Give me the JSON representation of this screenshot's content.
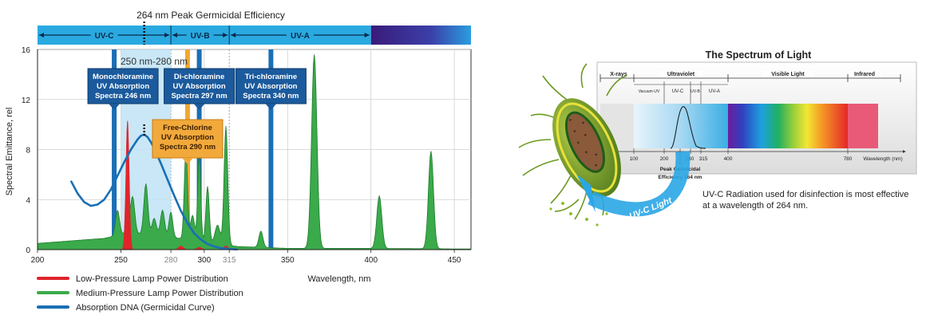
{
  "chart_data": [
    {
      "type": "line",
      "title": "264 nm Peak Germicidal Efficiency",
      "xlabel": "Wavelength, nm",
      "ylabel": "Spectral Emittance, rel",
      "xlim": [
        200,
        460
      ],
      "ylim": [
        0,
        16
      ],
      "x_ticks": [
        200,
        250,
        280,
        300,
        315,
        350,
        400,
        450
      ],
      "y_ticks": [
        0,
        4,
        8,
        12,
        16
      ],
      "grid": true,
      "legend_position": "bottom-left",
      "bands": [
        {
          "label": "UV-C",
          "from": 200,
          "to": 280
        },
        {
          "label": "UV-B",
          "from": 280,
          "to": 315
        },
        {
          "label": "UV-A",
          "from": 315,
          "to": 400
        }
      ],
      "highlight_range": {
        "label": "250 nm-280 nm",
        "from": 250,
        "to": 280
      },
      "peak_marker": {
        "x": 264,
        "label": "264 nm Peak Germicidal Efficiency"
      },
      "absorption_markers": [
        {
          "x": 246,
          "line1": "Monochloramine",
          "line2": "UV Absorption",
          "line3": "Spectra 246 nm",
          "color": "#1a6fb5"
        },
        {
          "x": 297,
          "line1": "Di-chloramine",
          "line2": "UV Absorption",
          "line3": "Spectra 297 nm",
          "color": "#1a6fb5"
        },
        {
          "x": 340,
          "line1": "Tri-chloramine",
          "line2": "UV Absorption",
          "line3": "Spectra 340 nm",
          "color": "#1a6fb5"
        },
        {
          "x": 290,
          "line1": "Free-Chlorine",
          "line2": "UV Absorption",
          "line3": "Spectra 290 nm",
          "color": "#f0a830"
        }
      ],
      "series": [
        {
          "name": "Low-Pressure Lamp Power Distribution",
          "color": "#e0242c",
          "peaks": [
            [
              254,
              10.3,
              1.0
            ],
            [
              286,
              0.3,
              1.5
            ],
            [
              297,
              0.2,
              1.5
            ],
            [
              313,
              0.3,
              1.5
            ]
          ]
        },
        {
          "name": "Medium-Pressure Lamp Power Distribution",
          "color": "#3aaa4a",
          "baseline": [
            [
              200,
              0.5
            ],
            [
              240,
              0.9
            ],
            [
              250,
              1.2
            ],
            [
              270,
              1.3
            ],
            [
              280,
              1.0
            ],
            [
              300,
              0.6
            ],
            [
              320,
              0.25
            ],
            [
              350,
              0.1
            ],
            [
              400,
              0.1
            ],
            [
              460,
              0.05
            ]
          ],
          "peaks": [
            [
              248,
              2.0,
              1.2
            ],
            [
              254,
              1.6,
              1.0
            ],
            [
              257,
              3.0,
              1.3
            ],
            [
              265,
              4.0,
              1.2
            ],
            [
              270,
              1.2,
              1.2
            ],
            [
              275,
              2.0,
              1.2
            ],
            [
              280,
              2.0,
              1.1
            ],
            [
              289,
              7.0,
              1.0
            ],
            [
              293,
              2.0,
              1.2
            ],
            [
              297,
              7.0,
              0.9
            ],
            [
              302,
              4.5,
              1.0
            ],
            [
              308,
              1.5,
              1.5
            ],
            [
              313,
              9.5,
              1.1
            ],
            [
              334,
              1.3,
              1.2
            ],
            [
              366,
              15.5,
              1.6
            ],
            [
              405,
              4.2,
              1.5
            ],
            [
              436,
              7.8,
              1.5
            ]
          ]
        },
        {
          "name": "Absorption DNA (Germicidal Curve)",
          "color": "#1a6fb5",
          "x": [
            220,
            224,
            228,
            232,
            236,
            240,
            244,
            248,
            252,
            256,
            260,
            262,
            264,
            266,
            268,
            270,
            274,
            278,
            282,
            286,
            290,
            294,
            298,
            302,
            306,
            310,
            315,
            320
          ],
          "y": [
            5.5,
            4.5,
            3.8,
            3.5,
            3.6,
            4.0,
            4.8,
            5.9,
            7.0,
            8.0,
            8.8,
            9.1,
            9.2,
            9.0,
            8.6,
            8.1,
            6.9,
            5.6,
            4.3,
            3.1,
            2.1,
            1.3,
            0.8,
            0.45,
            0.25,
            0.12,
            0.05,
            0.02
          ]
        }
      ]
    },
    {
      "type": "diagram",
      "title": "The Spectrum of Light",
      "xlabel": "Wavelength (nm)",
      "x_ticks": [
        "100",
        "200",
        "280",
        "315",
        "400",
        "780"
      ],
      "bands": [
        "X-rays",
        "Ultraviolet",
        "Visible Light",
        "Infrared"
      ],
      "uv_sub_bands": [
        "Vacuum-UV",
        "UV-C",
        "UV-B",
        "UV-A"
      ],
      "peak_annotation": "Peak Germicidal Efficiency 264 nm",
      "arrow_label": "UV-C Light",
      "caption": "UV-C Radiation used for disinfection is most effective at a wavelength of 264 nm."
    }
  ]
}
